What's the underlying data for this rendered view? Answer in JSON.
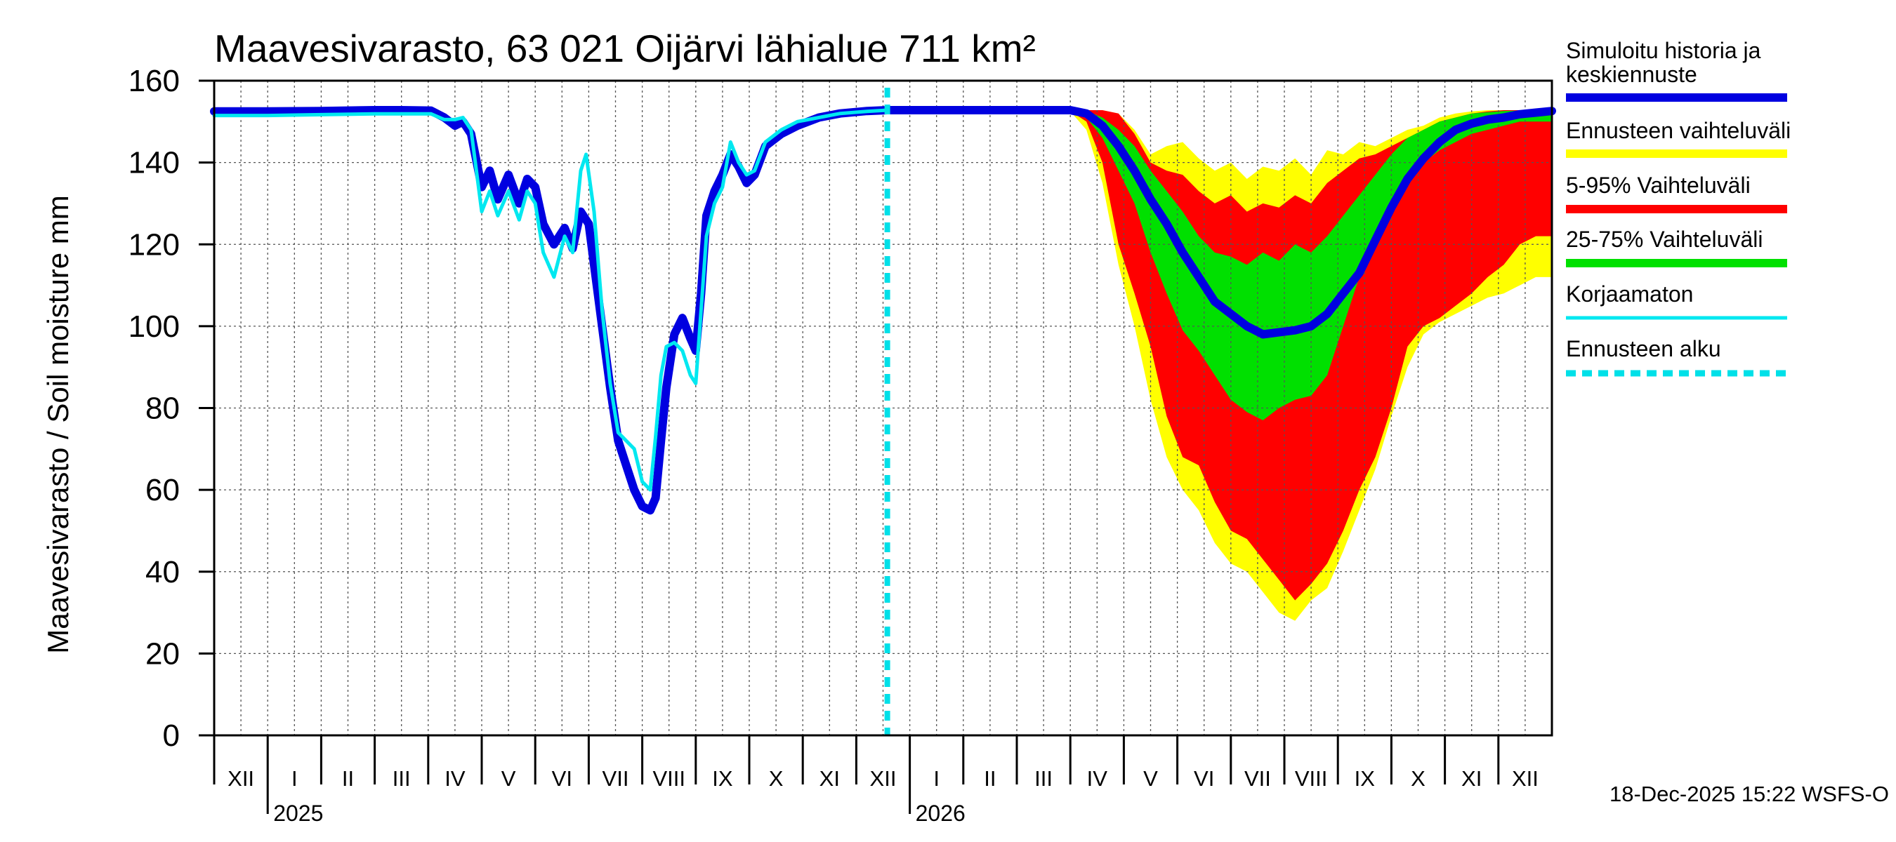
{
  "chart_data": {
    "type": "area",
    "title": "Maavesivarasto, 63 021 Oijärvi lähialue 711 km²",
    "ylabel": "Maavesivarasto / Soil moisture   mm",
    "xlabel": "",
    "ylim": [
      0,
      160
    ],
    "yticks": [
      0,
      20,
      40,
      60,
      80,
      100,
      120,
      140,
      160
    ],
    "x_unit": "month index from start of Dec 2024 (0 = 1 Dec 2024, 25 = 31 Dec 2026)",
    "xlim": [
      0,
      25
    ],
    "months": [
      {
        "label": "XII",
        "start": 0
      },
      {
        "label": "I",
        "start": 1
      },
      {
        "label": "II",
        "start": 2
      },
      {
        "label": "III",
        "start": 3
      },
      {
        "label": "IV",
        "start": 4
      },
      {
        "label": "V",
        "start": 5
      },
      {
        "label": "VI",
        "start": 6
      },
      {
        "label": "VII",
        "start": 7
      },
      {
        "label": "VIII",
        "start": 8
      },
      {
        "label": "IX",
        "start": 9
      },
      {
        "label": "X",
        "start": 10
      },
      {
        "label": "XI",
        "start": 11
      },
      {
        "label": "XII",
        "start": 12
      },
      {
        "label": "I",
        "start": 13
      },
      {
        "label": "II",
        "start": 14
      },
      {
        "label": "III",
        "start": 15
      },
      {
        "label": "IV",
        "start": 16
      },
      {
        "label": "V",
        "start": 17
      },
      {
        "label": "VI",
        "start": 18
      },
      {
        "label": "VII",
        "start": 19
      },
      {
        "label": "VIII",
        "start": 20
      },
      {
        "label": "IX",
        "start": 21
      },
      {
        "label": "X",
        "start": 22
      },
      {
        "label": "XI",
        "start": 23
      },
      {
        "label": "XII",
        "start": 24
      }
    ],
    "years": [
      {
        "label": "2025",
        "at": 1
      },
      {
        "label": "2026",
        "at": 13
      }
    ],
    "forecast_start": 12.58,
    "grid": true,
    "legend_position": "right",
    "legend": [
      {
        "key": "sim",
        "label": "Simuloitu historia ja keskiennuste",
        "lines": [
          "Simuloitu historia ja",
          "keskiennuste"
        ],
        "color": "#0000e0"
      },
      {
        "key": "range",
        "label": "Ennusteen vaihteluväli",
        "color": "#ffff00"
      },
      {
        "key": "p5_95",
        "label": "5-95% Vaihteluväli",
        "color": "#ff0000"
      },
      {
        "key": "p25_75",
        "label": "25-75% Vaihteluväli",
        "color": "#00e000"
      },
      {
        "key": "raw",
        "label": "Korjaamaton",
        "color": "#00e8f0"
      },
      {
        "key": "fstart",
        "label": "Ennusteen alku",
        "color": "#00e0e8"
      }
    ],
    "series": [
      {
        "name": "Simuloitu historia ja keskiennuste",
        "key": "sim",
        "x": [
          0,
          1,
          2,
          3,
          3.5,
          4.05,
          4.3,
          4.5,
          4.65,
          4.8,
          5.0,
          5.15,
          5.3,
          5.5,
          5.7,
          5.85,
          6.0,
          6.15,
          6.35,
          6.55,
          6.7,
          6.85,
          7.0,
          7.1,
          7.25,
          7.4,
          7.55,
          7.7,
          7.85,
          8.0,
          8.15,
          8.25,
          8.35,
          8.45,
          8.6,
          8.75,
          8.9,
          9.0,
          9.1,
          9.2,
          9.35,
          9.5,
          9.65,
          9.8,
          9.95,
          10.1,
          10.3,
          10.6,
          10.9,
          11.3,
          11.7,
          12.2,
          12.58,
          13,
          14,
          15,
          16,
          16.3,
          16.6,
          16.9,
          17.2,
          17.5,
          17.8,
          18.1,
          18.4,
          18.7,
          19.0,
          19.3,
          19.6,
          19.9,
          20.2,
          20.5,
          20.8,
          21.1,
          21.4,
          21.7,
          22.0,
          22.3,
          22.6,
          22.9,
          23.2,
          23.5,
          23.8,
          24.1,
          24.4,
          24.7,
          25
        ],
        "y": [
          152.5,
          152.5,
          152.6,
          152.8,
          152.8,
          152.7,
          151.0,
          149.0,
          150.0,
          147.0,
          134.0,
          138.0,
          131.0,
          137.0,
          130.0,
          136.0,
          134.0,
          125.0,
          120.0,
          124.0,
          119.0,
          128.0,
          125.0,
          115.0,
          100.0,
          85.0,
          72.0,
          66.0,
          60.0,
          56.0,
          55.0,
          58.0,
          72.0,
          85.0,
          98.0,
          102.0,
          97.0,
          94.0,
          108.0,
          127.0,
          133.0,
          137.0,
          142.0,
          139.0,
          135.0,
          137.0,
          144.0,
          147.0,
          149.0,
          151.0,
          152.0,
          152.6,
          152.8,
          152.8,
          152.8,
          152.8,
          152.8,
          152.0,
          149.0,
          144.0,
          138.0,
          131.0,
          125.0,
          118.0,
          112.0,
          106.0,
          103.0,
          100.0,
          98.0,
          98.5,
          99.0,
          100.0,
          103.0,
          108.0,
          113.0,
          121.0,
          129.0,
          136.0,
          141.0,
          145.0,
          148.0,
          149.5,
          150.5,
          151.0,
          151.8,
          152.2,
          152.6
        ]
      },
      {
        "name": "Korjaamaton",
        "key": "raw",
        "x": [
          0,
          1,
          2,
          3,
          3.5,
          4.05,
          4.3,
          4.5,
          4.65,
          4.8,
          5.0,
          5.15,
          5.3,
          5.5,
          5.7,
          5.85,
          6.0,
          6.15,
          6.35,
          6.55,
          6.7,
          6.85,
          6.95,
          7.1,
          7.25,
          7.4,
          7.55,
          7.7,
          7.85,
          8.0,
          8.15,
          8.25,
          8.35,
          8.45,
          8.6,
          8.75,
          8.9,
          9.0,
          9.1,
          9.2,
          9.35,
          9.5,
          9.65,
          9.8,
          9.95,
          10.1,
          10.3,
          10.6,
          10.9,
          11.3,
          11.7,
          12.2,
          12.58
        ],
        "y": [
          151.5,
          151.5,
          151.7,
          151.9,
          151.9,
          151.9,
          150.5,
          150.5,
          151.0,
          148.0,
          128.0,
          133.0,
          127.0,
          133.0,
          126.0,
          133.0,
          130.0,
          118.0,
          112.0,
          122.0,
          118.0,
          138.0,
          142.0,
          128.0,
          104.0,
          86.0,
          74.0,
          72.0,
          70.0,
          62.0,
          60.0,
          73.0,
          88.0,
          95.0,
          96.0,
          94.0,
          88.0,
          86.0,
          104.0,
          122.0,
          130.0,
          134.0,
          145.0,
          140.0,
          137.0,
          138.0,
          145.0,
          148.0,
          150.0,
          151.0,
          152.0,
          152.5,
          152.8
        ]
      }
    ],
    "bands": [
      {
        "name": "Ennusteen vaihteluväli",
        "key": "range",
        "x": [
          12.58,
          16.0,
          16.3,
          16.6,
          16.9,
          17.2,
          17.5,
          17.8,
          18.1,
          18.4,
          18.7,
          19.0,
          19.3,
          19.6,
          19.9,
          20.2,
          20.5,
          20.8,
          21.1,
          21.4,
          21.7,
          22.0,
          22.3,
          22.6,
          22.9,
          23.2,
          23.5,
          23.8,
          24.1,
          24.4,
          24.7,
          25.0
        ],
        "upper": [
          152.8,
          152.8,
          152.8,
          152.8,
          152.0,
          148.0,
          142.0,
          144.0,
          145.0,
          141.0,
          138.0,
          140.0,
          136.0,
          139.0,
          138.0,
          141.0,
          137.0,
          143.0,
          142.0,
          145.0,
          144.0,
          146.0,
          148.0,
          149.0,
          151.0,
          152.0,
          152.5,
          152.8,
          152.8,
          152.8,
          152.8,
          152.8
        ],
        "lower": [
          152.8,
          152.5,
          148.0,
          135.0,
          115.0,
          100.0,
          82.0,
          68.0,
          60.0,
          55.0,
          47.0,
          42.0,
          40.0,
          35.0,
          30.0,
          28.0,
          33.0,
          36.0,
          45.0,
          55.0,
          65.0,
          78.0,
          90.0,
          98.0,
          101.0,
          103.0,
          105.0,
          107.0,
          108.0,
          110.0,
          112.0,
          112.0
        ]
      },
      {
        "name": "5-95% Vaihteluväli",
        "key": "p5_95",
        "x": [
          12.58,
          16.0,
          16.3,
          16.6,
          16.9,
          17.2,
          17.5,
          17.8,
          18.1,
          18.4,
          18.7,
          19.0,
          19.3,
          19.6,
          19.9,
          20.2,
          20.5,
          20.8,
          21.1,
          21.4,
          21.7,
          22.0,
          22.3,
          22.6,
          22.9,
          23.2,
          23.5,
          23.8,
          24.1,
          24.4,
          24.7,
          25.0
        ],
        "upper": [
          152.8,
          152.8,
          152.8,
          152.8,
          152.0,
          147.0,
          140.0,
          138.0,
          137.0,
          133.0,
          130.0,
          132.0,
          128.0,
          130.0,
          129.0,
          132.0,
          130.0,
          135.0,
          138.0,
          141.0,
          142.0,
          144.0,
          146.0,
          148.0,
          150.0,
          151.0,
          152.0,
          152.5,
          152.8,
          152.8,
          152.8,
          152.8
        ],
        "lower": [
          152.8,
          152.6,
          150.0,
          140.0,
          120.0,
          108.0,
          95.0,
          78.0,
          68.0,
          66.0,
          57.0,
          50.0,
          48.0,
          43.0,
          38.0,
          33.0,
          37.0,
          42.0,
          50.0,
          60.0,
          68.0,
          80.0,
          95.0,
          100.0,
          102.0,
          105.0,
          108.0,
          112.0,
          115.0,
          120.0,
          122.0,
          122.0
        ]
      },
      {
        "name": "25-75% Vaihteluväli",
        "key": "p25_75",
        "x": [
          12.58,
          16.0,
          16.3,
          16.6,
          16.9,
          17.2,
          17.5,
          17.8,
          18.1,
          18.4,
          18.7,
          19.0,
          19.3,
          19.6,
          19.9,
          20.2,
          20.5,
          20.8,
          21.1,
          21.4,
          21.7,
          22.0,
          22.3,
          22.6,
          22.9,
          23.2,
          23.5,
          23.8,
          24.1,
          24.4,
          24.7,
          25.0
        ],
        "upper": [
          152.8,
          152.8,
          152.7,
          151.0,
          148.0,
          144.0,
          138.0,
          133.0,
          128.0,
          122.0,
          118.0,
          117.0,
          115.0,
          118.0,
          116.0,
          120.0,
          118.0,
          122.0,
          127.0,
          132.0,
          137.0,
          142.0,
          146.0,
          148.0,
          150.0,
          151.0,
          152.0,
          152.3,
          152.6,
          152.7,
          152.8,
          152.8
        ],
        "lower": [
          152.8,
          152.7,
          151.0,
          146.0,
          138.0,
          130.0,
          118.0,
          108.0,
          99.0,
          94.0,
          88.0,
          82.0,
          79.0,
          77.0,
          80.0,
          82.0,
          83.0,
          88.0,
          100.0,
          112.0,
          122.0,
          130.0,
          136.0,
          140.0,
          143.0,
          145.0,
          147.0,
          148.0,
          149.0,
          150.0,
          150.0,
          150.0
        ]
      }
    ]
  },
  "timestamp": "18-Dec-2025 15:22 WSFS-O"
}
